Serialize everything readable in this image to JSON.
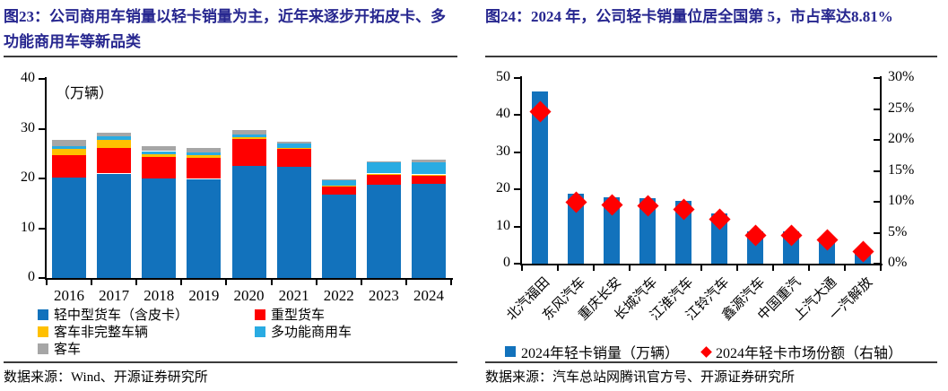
{
  "panels": {
    "left": {
      "title": "图23：公司商用车销量以轻卡销量为主，近年来逐步开拓皮卡、多功能商用车等新品类",
      "source": "数据来源：Wind、开源证券研究所",
      "chart_data": {
        "type": "bar",
        "stacked": true,
        "categories": [
          "2016",
          "2017",
          "2018",
          "2019",
          "2020",
          "2021",
          "2022",
          "2023",
          "2024"
        ],
        "series": [
          {
            "name": "轻中型货车（含皮卡）",
            "color": "#1272BC",
            "values": [
              20.2,
              21.0,
              20.0,
              19.9,
              22.6,
              22.3,
              16.7,
              18.7,
              18.9
            ]
          },
          {
            "name": "重型货车",
            "color": "#FF0000",
            "values": [
              4.5,
              5.2,
              4.3,
              4.2,
              5.3,
              3.6,
              1.6,
              2.1,
              1.6
            ]
          },
          {
            "name": "客车非完整车辆",
            "color": "#FFC000",
            "values": [
              1.3,
              1.6,
              0.6,
              0.6,
              0.4,
              0.2,
              0.2,
              0.2,
              0.3
            ]
          },
          {
            "name": "多功能商用车",
            "color": "#29ABE2",
            "values": [
              0.5,
              0.7,
              0.6,
              0.6,
              0.6,
              1.0,
              1.3,
              2.4,
              2.4
            ]
          },
          {
            "name": "客车",
            "color": "#A6A6A6",
            "values": [
              1.2,
              0.7,
              1.0,
              0.9,
              0.8,
              0.3,
              0.1,
              0.1,
              0.6
            ]
          }
        ],
        "ylabel": "（万辆）",
        "ylim": [
          0,
          40
        ],
        "ytick_step": 10,
        "grid": false,
        "legend_position": "bottom"
      }
    },
    "right": {
      "title": "图24：2024 年，公司轻卡销量位居全国第 5，市占率达8.81%",
      "source": "数据来源：汽车总站网腾讯官方号、开源证券研究所",
      "chart_data": {
        "type": "bar",
        "categories": [
          "北汽福田",
          "东风汽车",
          "重庆长安",
          "长城汽车",
          "江淮汽车",
          "江铃汽车",
          "鑫源汽车",
          "中国重汽",
          "上汽大通",
          "一汽解放"
        ],
        "series": [
          {
            "name": "2024年轻卡销量（万辆）",
            "type": "bar",
            "axis": "left",
            "color": "#1272BC",
            "values": [
              46.5,
              18.8,
              18.0,
              17.7,
              16.9,
              13.6,
              8.8,
              8.7,
              7.0,
              3.6
            ]
          },
          {
            "name": "2024年轻卡市场份额（右轴）",
            "type": "scatter-diamond",
            "axis": "right",
            "color": "#FF0000",
            "values_pct": [
              24.5,
              9.9,
              9.5,
              9.3,
              8.81,
              7.2,
              4.6,
              4.5,
              3.8,
              2.0
            ]
          }
        ],
        "ylim_left": [
          0,
          50
        ],
        "ytick_step_left": 10,
        "ylim_right_pct": [
          0,
          30
        ],
        "ytick_step_right_pct": 5,
        "grid": false,
        "legend_position": "bottom"
      }
    }
  },
  "style_colors": {
    "title_navy": "#26268F",
    "axis_black": "#000000",
    "bar_blue": "#1272BC",
    "bar_red": "#FF0000",
    "bar_yellow": "#FFC000",
    "bar_lightblue": "#29ABE2",
    "bar_gray": "#A6A6A6",
    "diamond_red": "#FF0000"
  }
}
